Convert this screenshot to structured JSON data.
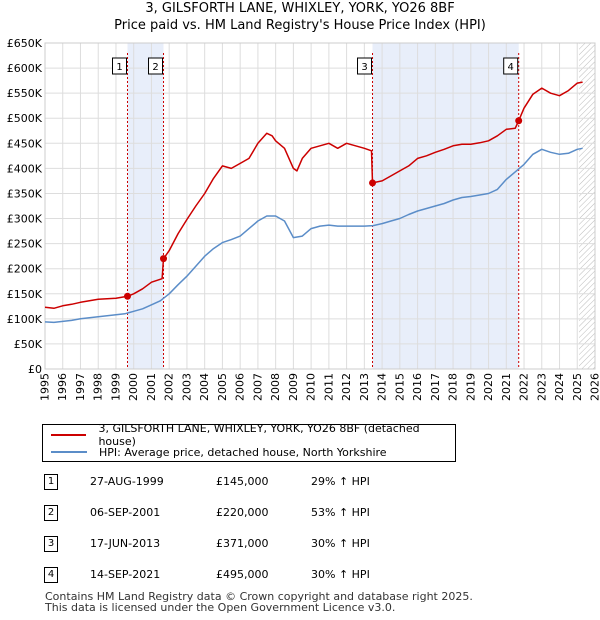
{
  "title": "3, GILSFORTH LANE, WHIXLEY, YORK, YO26 8BF",
  "subtitle": "Price paid vs. HM Land Registry's House Price Index (HPI)",
  "colors": {
    "property": "#cc0000",
    "hpi": "#5b8dc8",
    "shade": "#e8eefa",
    "marker_line": "#cc0000",
    "grid": "#dddddd"
  },
  "chart_data": {
    "type": "line",
    "title": "3, GILSFORTH LANE, WHIXLEY, YORK, YO26 8BF",
    "subtitle": "Price paid vs. HM Land Registry's House Price Index (HPI)",
    "xlabel": "",
    "ylabel": "",
    "xlim": [
      1995,
      2026
    ],
    "ylim": [
      0,
      650000
    ],
    "x_ticks": [
      "1995",
      "1996",
      "1997",
      "1998",
      "1999",
      "2000",
      "2001",
      "2002",
      "2003",
      "2004",
      "2005",
      "2006",
      "2007",
      "2008",
      "2009",
      "2010",
      "2011",
      "2012",
      "2013",
      "2014",
      "2015",
      "2016",
      "2017",
      "2018",
      "2019",
      "2020",
      "2021",
      "2022",
      "2023",
      "2024",
      "2025",
      "2026"
    ],
    "y_ticks": [
      {
        "value": 0,
        "label": "£0"
      },
      {
        "value": 50000,
        "label": "£50K"
      },
      {
        "value": 100000,
        "label": "£100K"
      },
      {
        "value": 150000,
        "label": "£150K"
      },
      {
        "value": 200000,
        "label": "£200K"
      },
      {
        "value": 250000,
        "label": "£250K"
      },
      {
        "value": 300000,
        "label": "£300K"
      },
      {
        "value": 350000,
        "label": "£350K"
      },
      {
        "value": 400000,
        "label": "£400K"
      },
      {
        "value": 450000,
        "label": "£450K"
      },
      {
        "value": 500000,
        "label": "£500K"
      },
      {
        "value": 550000,
        "label": "£550K"
      },
      {
        "value": 600000,
        "label": "£600K"
      },
      {
        "value": 650000,
        "label": "£650K"
      }
    ],
    "shaded_periods": [
      [
        1999.65,
        2001.68
      ],
      [
        2013.46,
        2021.7
      ]
    ],
    "future_hatch_from": 2025.1,
    "series": [
      {
        "name": "3, GILSFORTH LANE, WHIXLEY, YORK, YO26 8BF (detached house)",
        "x": [
          1995,
          1995.5,
          1996,
          1996.5,
          1997,
          1997.5,
          1998,
          1998.5,
          1999,
          1999.65,
          2000,
          2000.5,
          2001,
          2001.6,
          2001.68,
          2002,
          2002.5,
          2003,
          2003.5,
          2004,
          2004.5,
          2005,
          2005.5,
          2006,
          2006.5,
          2007,
          2007.5,
          2007.8,
          2008,
          2008.5,
          2009,
          2009.2,
          2009.5,
          2010,
          2010.5,
          2011,
          2011.5,
          2012,
          2012.5,
          2013,
          2013.4,
          2013.46,
          2014,
          2014.5,
          2015,
          2015.5,
          2016,
          2016.5,
          2017,
          2017.5,
          2018,
          2018.5,
          2019,
          2019.5,
          2020,
          2020.5,
          2021,
          2021.5,
          2021.7,
          2022,
          2022.5,
          2023,
          2023.5,
          2024,
          2024.5,
          2025,
          2025.3
        ],
        "y": [
          123000,
          121000,
          126000,
          129000,
          133000,
          136000,
          139000,
          140000,
          141000,
          145000,
          150000,
          160000,
          173000,
          180000,
          220000,
          236000,
          270000,
          298000,
          325000,
          350000,
          380000,
          405000,
          400000,
          410000,
          420000,
          450000,
          470000,
          465000,
          455000,
          440000,
          400000,
          395000,
          420000,
          440000,
          445000,
          450000,
          440000,
          450000,
          445000,
          440000,
          435000,
          371000,
          375000,
          385000,
          395000,
          405000,
          420000,
          425000,
          432000,
          438000,
          445000,
          448000,
          448000,
          451000,
          455000,
          465000,
          478000,
          480000,
          495000,
          520000,
          548000,
          560000,
          550000,
          545000,
          555000,
          570000,
          572000
        ]
      },
      {
        "name": "HPI: Average price, detached house, North Yorkshire",
        "x": [
          1995,
          1995.5,
          1996,
          1996.5,
          1997,
          1997.5,
          1998,
          1998.5,
          1999,
          1999.5,
          2000,
          2000.5,
          2001,
          2001.5,
          2002,
          2002.5,
          2003,
          2003.5,
          2004,
          2004.5,
          2005,
          2005.5,
          2006,
          2006.5,
          2007,
          2007.5,
          2008,
          2008.5,
          2009,
          2009.5,
          2010,
          2010.5,
          2011,
          2011.5,
          2012,
          2012.5,
          2013,
          2013.5,
          2014,
          2014.5,
          2015,
          2015.5,
          2016,
          2016.5,
          2017,
          2017.5,
          2018,
          2018.5,
          2019,
          2019.5,
          2020,
          2020.5,
          2021,
          2021.5,
          2022,
          2022.5,
          2023,
          2023.5,
          2024,
          2024.5,
          2025,
          2025.3
        ],
        "y": [
          94000,
          93000,
          95000,
          97000,
          100000,
          102000,
          104000,
          106000,
          108000,
          110000,
          115000,
          120000,
          128000,
          136000,
          150000,
          168000,
          185000,
          205000,
          225000,
          240000,
          252000,
          258000,
          265000,
          280000,
          295000,
          305000,
          305000,
          295000,
          262000,
          265000,
          280000,
          285000,
          287000,
          285000,
          285000,
          285000,
          285000,
          286000,
          290000,
          295000,
          300000,
          308000,
          315000,
          320000,
          325000,
          330000,
          337000,
          342000,
          344000,
          347000,
          350000,
          358000,
          378000,
          393000,
          408000,
          428000,
          438000,
          432000,
          428000,
          430000,
          438000,
          440000
        ]
      }
    ],
    "sales": [
      {
        "label": "1",
        "date": "27-AUG-1999",
        "x": 1999.65,
        "price_value": 145000,
        "price": "£145,000",
        "hpi": "29% ↑ HPI"
      },
      {
        "label": "2",
        "date": "06-SEP-2001",
        "x": 2001.68,
        "price_value": 220000,
        "price": "£220,000",
        "hpi": "53% ↑ HPI"
      },
      {
        "label": "3",
        "date": "17-JUN-2013",
        "x": 2013.46,
        "price_value": 371000,
        "price": "£371,000",
        "hpi": "30% ↑ HPI"
      },
      {
        "label": "4",
        "date": "14-SEP-2021",
        "x": 2021.7,
        "price_value": 495000,
        "price": "£495,000",
        "hpi": "30% ↑ HPI"
      }
    ]
  },
  "legend": {
    "property_label": "3, GILSFORTH LANE, WHIXLEY, YORK, YO26 8BF (detached house)",
    "hpi_label": "HPI: Average price, detached house, North Yorkshire"
  },
  "footer": {
    "line1": "Contains HM Land Registry data © Crown copyright and database right 2025.",
    "line2": "This data is licensed under the Open Government Licence v3.0."
  }
}
